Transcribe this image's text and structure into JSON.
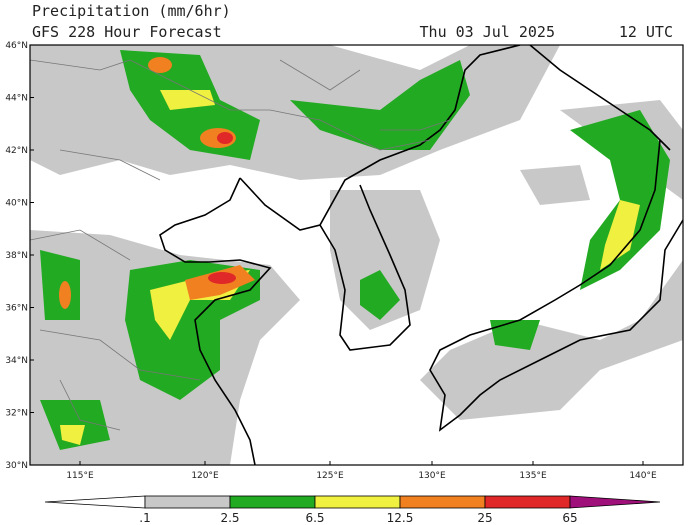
{
  "header": {
    "title": "Precipitation (mm/6hr)",
    "subtitle": "GFS 228 Hour Forecast",
    "date": "Thu 03 Jul 2025",
    "time": "12 UTC"
  },
  "map": {
    "lat_labels": [
      "46°N",
      "44°N",
      "42°N",
      "40°N",
      "38°N",
      "36°N",
      "34°N",
      "32°N",
      "30°N"
    ],
    "lon_labels": [
      "115°E",
      "120°E",
      "125°E",
      "130°E",
      "135°E",
      "140°E"
    ]
  },
  "colorbar": {
    "labels": [
      ".1",
      "2.5",
      "6.5",
      "12.5",
      "25",
      "65"
    ]
  }
}
